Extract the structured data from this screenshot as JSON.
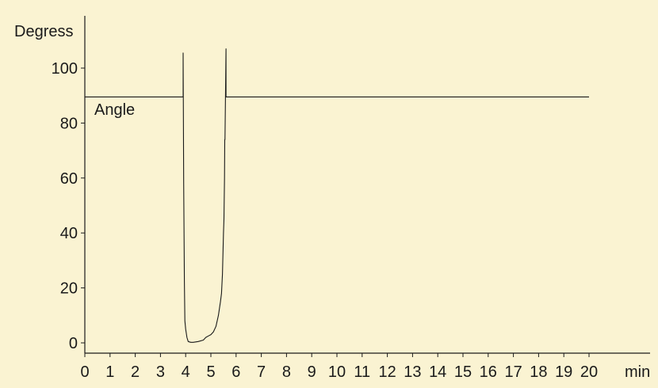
{
  "chart_data": {
    "type": "line",
    "title": "",
    "ylabel": "Degress",
    "xlabel": "min",
    "xlim": [
      0,
      20
    ],
    "ylim": [
      -3,
      113
    ],
    "xticks": [
      0,
      1,
      2,
      3,
      4,
      5,
      6,
      7,
      8,
      9,
      10,
      11,
      12,
      13,
      14,
      15,
      16,
      17,
      18,
      19,
      20
    ],
    "yticks": [
      0,
      20,
      40,
      60,
      80,
      100
    ],
    "grid": false,
    "background": "#faf3d2",
    "line_color": "#1a1a1a",
    "series": [
      {
        "name": "Angle",
        "x": [
          0,
          3.9,
          3.9,
          3.92,
          3.95,
          3.97,
          4.0,
          4.05,
          4.1,
          4.2,
          4.3,
          4.5,
          4.7,
          4.8,
          4.9,
          5.0,
          5.1,
          5.2,
          5.3,
          5.38,
          5.42,
          5.46,
          5.5,
          5.52,
          5.54,
          5.55,
          5.56,
          5.6,
          5.6,
          20
        ],
        "y": [
          89.5,
          89.5,
          105.5,
          58,
          22,
          8,
          5,
          2,
          0.5,
          0.2,
          0.2,
          0.5,
          1,
          2,
          2.5,
          3,
          4,
          6,
          10,
          15,
          18,
          25,
          40,
          45,
          60,
          74,
          74,
          107,
          89.5,
          89.5
        ]
      }
    ],
    "annotations": [
      "Angle"
    ]
  }
}
